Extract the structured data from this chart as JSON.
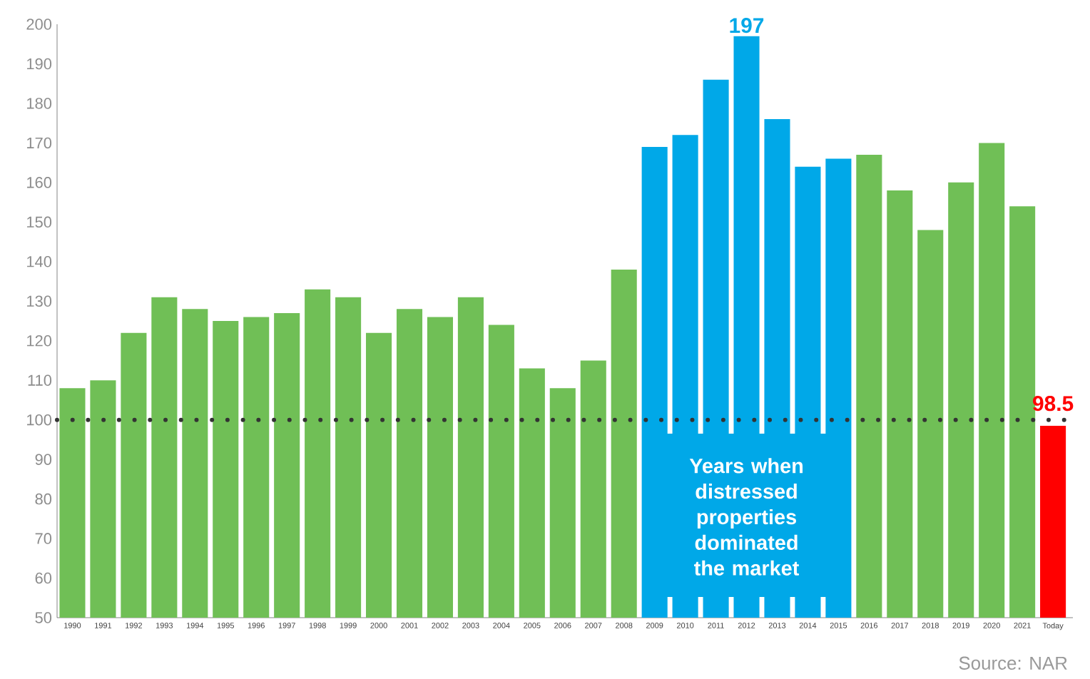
{
  "chart_data": {
    "type": "bar",
    "categories": [
      "1990",
      "1991",
      "1992",
      "1993",
      "1994",
      "1995",
      "1996",
      "1997",
      "1998",
      "1999",
      "2000",
      "2001",
      "2002",
      "2003",
      "2004",
      "2005",
      "2006",
      "2007",
      "2008",
      "2009",
      "2010",
      "2011",
      "2012",
      "2013",
      "2014",
      "2015",
      "2016",
      "2017",
      "2018",
      "2019",
      "2020",
      "2021",
      "Today"
    ],
    "values": [
      108,
      110,
      122,
      131,
      128,
      125,
      126,
      127,
      133,
      131,
      122,
      128,
      126,
      131,
      124,
      113,
      108,
      115,
      138,
      169,
      172,
      186,
      197,
      176,
      164,
      166,
      167,
      158,
      148,
      160,
      170,
      154,
      98.5
    ],
    "colors": [
      "#70bf56",
      "#70bf56",
      "#70bf56",
      "#70bf56",
      "#70bf56",
      "#70bf56",
      "#70bf56",
      "#70bf56",
      "#70bf56",
      "#70bf56",
      "#70bf56",
      "#70bf56",
      "#70bf56",
      "#70bf56",
      "#70bf56",
      "#70bf56",
      "#70bf56",
      "#70bf56",
      "#70bf56",
      "#00a8e8",
      "#00a8e8",
      "#00a8e8",
      "#00a8e8",
      "#00a8e8",
      "#00a8e8",
      "#00a8e8",
      "#70bf56",
      "#70bf56",
      "#70bf56",
      "#70bf56",
      "#70bf56",
      "#70bf56",
      "#ff0000"
    ],
    "value_labels": [
      null,
      null,
      null,
      null,
      null,
      null,
      null,
      null,
      null,
      null,
      null,
      null,
      null,
      null,
      null,
      null,
      null,
      null,
      null,
      null,
      null,
      null,
      "197",
      null,
      null,
      null,
      null,
      null,
      null,
      null,
      null,
      null,
      "98.5"
    ],
    "ylim": [
      50,
      200
    ],
    "yticks": [
      50,
      60,
      70,
      80,
      90,
      100,
      110,
      120,
      130,
      140,
      150,
      160,
      170,
      180,
      190,
      200
    ],
    "ref_lines": [
      {
        "axis": "y",
        "value": 100,
        "color": "#333333",
        "line_style": "dotted"
      }
    ],
    "annotations": [
      "Years when distressed properties dominated the market",
      "Source: NAR"
    ],
    "grid": false
  }
}
